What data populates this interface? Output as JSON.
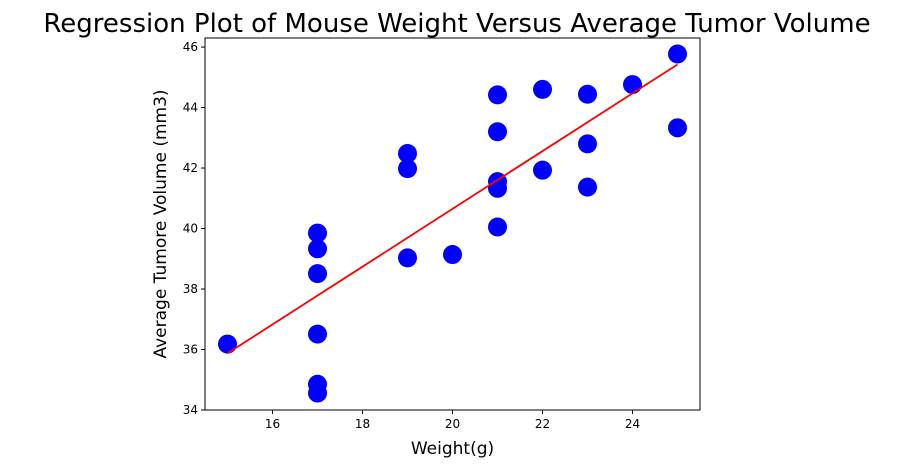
{
  "chart_data": {
    "type": "scatter",
    "title": "Regression Plot of Mouse Weight Versus Average Tumor Volume",
    "xlabel": "Weight(g)",
    "ylabel": "Average Tumore Volume (mm3)",
    "xlim": [
      14.5,
      25.5
    ],
    "ylim": [
      34,
      46.3
    ],
    "xticks": [
      16,
      18,
      20,
      22,
      24
    ],
    "yticks": [
      34,
      36,
      38,
      40,
      42,
      44,
      46
    ],
    "grid": false,
    "points": [
      {
        "x": 15,
        "y": 36.18
      },
      {
        "x": 17,
        "y": 34.56
      },
      {
        "x": 17,
        "y": 34.85
      },
      {
        "x": 17,
        "y": 36.51
      },
      {
        "x": 17,
        "y": 38.51
      },
      {
        "x": 17,
        "y": 39.33
      },
      {
        "x": 17,
        "y": 39.85
      },
      {
        "x": 19,
        "y": 39.03
      },
      {
        "x": 19,
        "y": 41.98
      },
      {
        "x": 19,
        "y": 42.48
      },
      {
        "x": 20,
        "y": 39.14
      },
      {
        "x": 21,
        "y": 40.05
      },
      {
        "x": 21,
        "y": 41.33
      },
      {
        "x": 21,
        "y": 41.55
      },
      {
        "x": 21,
        "y": 43.2
      },
      {
        "x": 21,
        "y": 44.42
      },
      {
        "x": 22,
        "y": 41.93
      },
      {
        "x": 22,
        "y": 44.6
      },
      {
        "x": 23,
        "y": 41.37
      },
      {
        "x": 23,
        "y": 42.8
      },
      {
        "x": 23,
        "y": 44.44
      },
      {
        "x": 24,
        "y": 44.76
      },
      {
        "x": 25,
        "y": 43.33
      },
      {
        "x": 25,
        "y": 45.77
      }
    ],
    "regression": {
      "slope": 0.955,
      "intercept": 21.55,
      "x_range": [
        15,
        25
      ]
    },
    "colors": {
      "points": "#0000ff",
      "line": "#ff0000",
      "axes": "#000000"
    }
  }
}
